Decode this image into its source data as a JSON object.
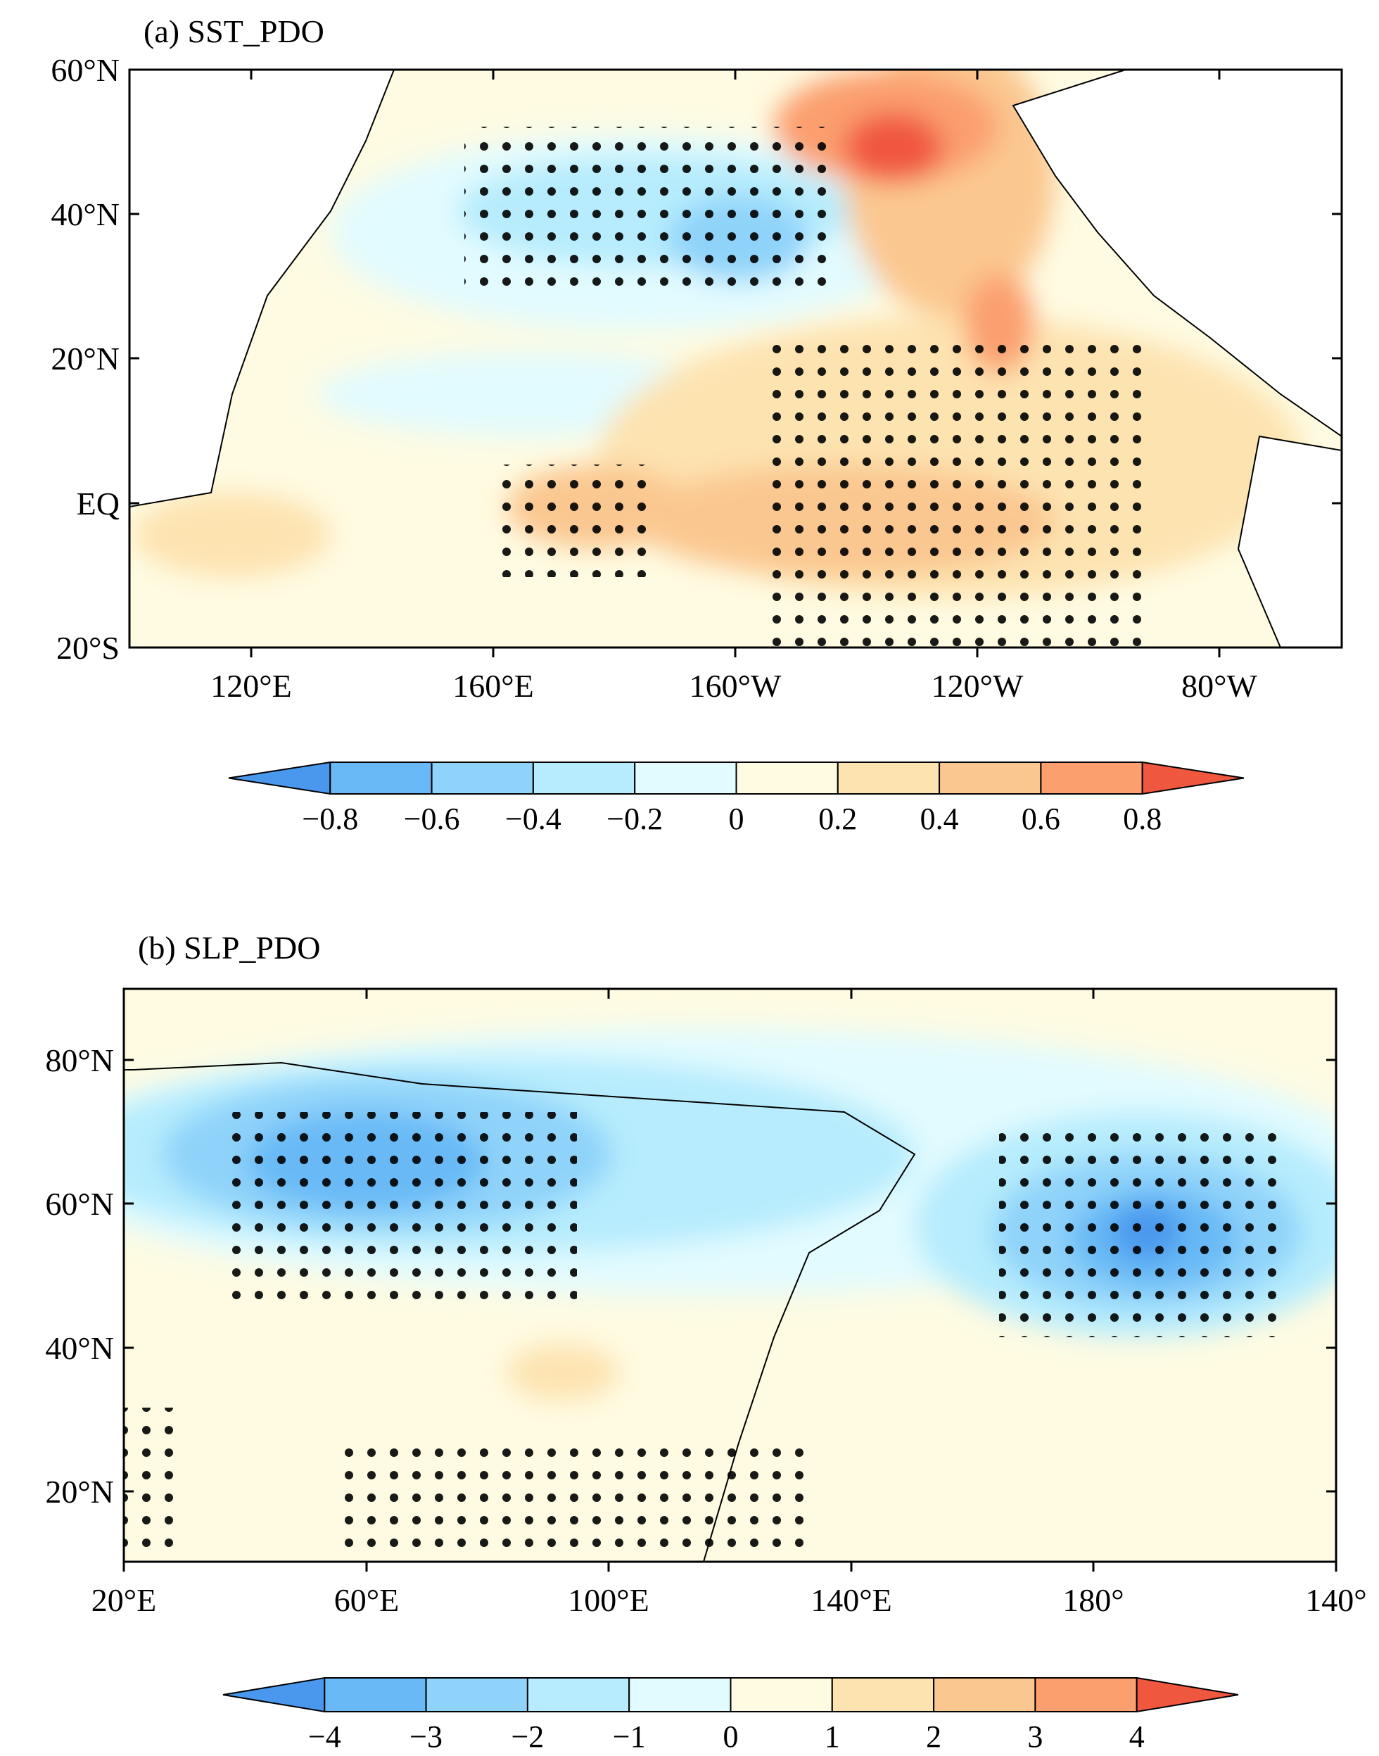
{
  "panels": [
    {
      "title": "(a) SST_PDO",
      "lat_ticks": [
        "60°N",
        "40°N",
        "20°N",
        "EQ",
        "20°S"
      ],
      "lon_ticks": [
        "120°E",
        "160°E",
        "160°W",
        "120°W",
        "80°W"
      ],
      "colorbar": {
        "labels": [
          "−0.8",
          "−0.6",
          "−0.4",
          "−0.2",
          "0",
          "0.2",
          "0.4",
          "0.6",
          "0.8"
        ],
        "colors": [
          "#4a98ee",
          "#68b9f6",
          "#8fd3fa",
          "#b6ecfd",
          "#e2fbfe",
          "#fefbe2",
          "#fde3b0",
          "#fbc790",
          "#fb9f6e",
          "#f0573f"
        ]
      }
    },
    {
      "title": "(b) SLP_PDO",
      "lat_ticks": [
        "80°N",
        "60°N",
        "40°N",
        "20°N"
      ],
      "lon_ticks": [
        "20°E",
        "60°E",
        "100°E",
        "140°E",
        "180°",
        "140°"
      ],
      "colorbar": {
        "labels": [
          "−4",
          "−3",
          "−2",
          "−1",
          "0",
          "1",
          "2",
          "3",
          "4"
        ],
        "colors": [
          "#4a98ee",
          "#68b9f6",
          "#8fd3fa",
          "#b6ecfd",
          "#e2fbfe",
          "#fefbe2",
          "#fde3b0",
          "#fbc790",
          "#fb9f6e",
          "#f0573f"
        ]
      }
    }
  ]
}
